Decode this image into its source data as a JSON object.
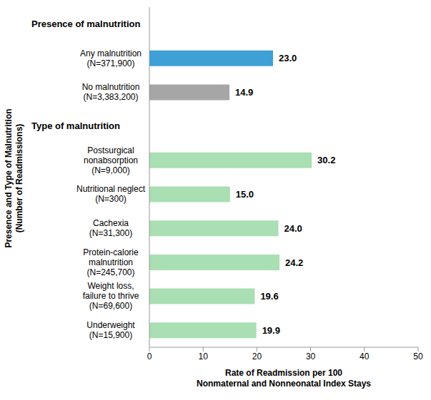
{
  "chart_data": {
    "type": "bar",
    "orientation": "horizontal",
    "categories": [
      "Presence of malnutrition",
      "Any malnutrition\n(N=371,900)",
      "No malnutrition\n(N=3,383,200)",
      "Type of malnutrition",
      "Postsurgical\nnonabsorption\n(N=9,000)",
      "Nutritional neglect\n(N=300)",
      "Cachexia\n(N=31,300)",
      "Protein-calorie\nmalnutrition\n(N=245,700)",
      "Weight loss,\nfailure to thrive\n(N=69,600)",
      "Underweight\n(N=15,900)"
    ],
    "values": [
      null,
      23.0,
      14.9,
      null,
      30.2,
      15.0,
      24.0,
      24.2,
      19.6,
      19.9
    ],
    "value_labels": [
      null,
      "23.0",
      "14.9",
      null,
      "30.2",
      "15.0",
      "24.0",
      "24.2",
      "19.6",
      "19.9"
    ],
    "colors": [
      null,
      "#3fa0d6",
      "#a6a6a6",
      null,
      "#a9dfb3",
      "#a9dfb3",
      "#a9dfb3",
      "#a9dfb3",
      "#a9dfb3",
      "#a9dfb3"
    ],
    "xlabel": "Rate of Readmission per 100\nNonmaternal and Nonneonatal Index Stays",
    "ylabel": "Presence and Type of Malnutrition\n(Number of Readmissions)",
    "xlim": [
      0,
      50
    ],
    "xticks": [
      0,
      10,
      20,
      30,
      40,
      50
    ],
    "grid": false,
    "data_labels": true
  }
}
